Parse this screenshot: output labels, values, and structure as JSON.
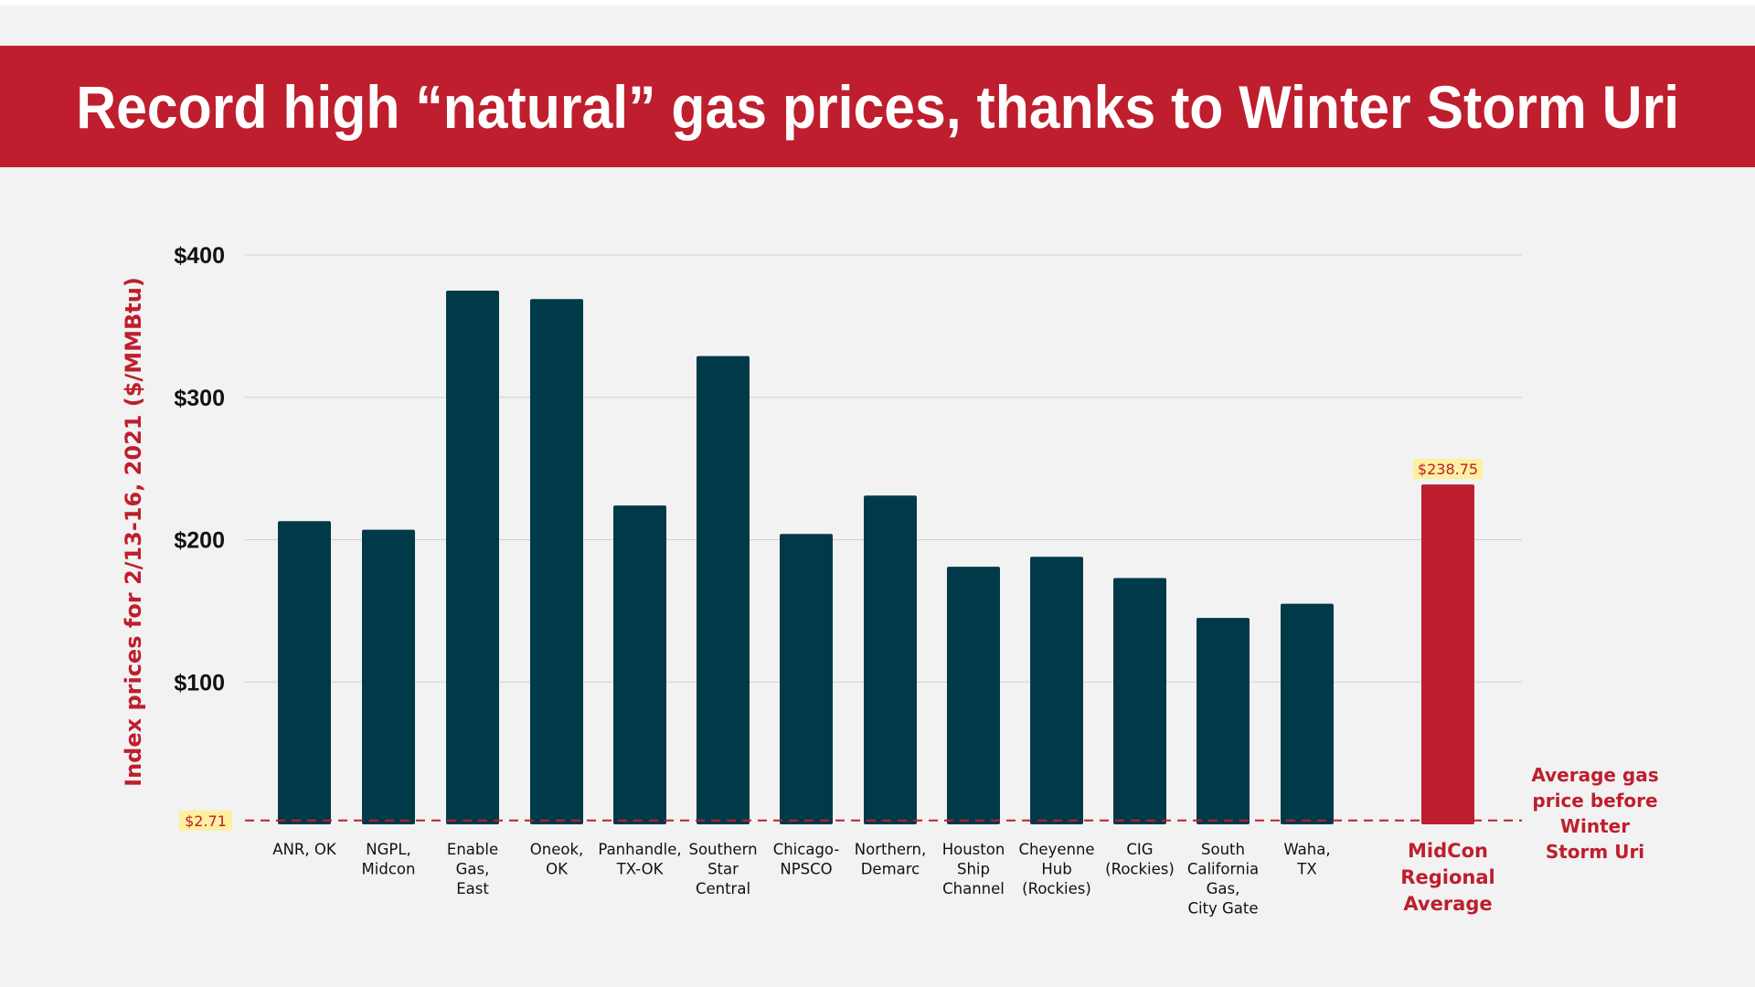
{
  "title": "Record high “natural” gas prices, thanks to Winter Storm Uri",
  "colors": {
    "banner": "#be1e2d",
    "bar": "#003a48",
    "highlight_bar": "#be1e2d",
    "reference_line": "#be1e2d",
    "label_background": "#fdf0a0",
    "panel_background": "#f2f2f2"
  },
  "chart_data": {
    "type": "bar",
    "title": "Record high “natural” gas prices, thanks to Winter Storm Uri",
    "ylabel": "Index prices for 2/13-16, 2021 ($/MMBtu)",
    "xlabel": "",
    "ylim": [
      0,
      400
    ],
    "yticks": [
      100,
      200,
      300,
      400
    ],
    "ytick_labels": [
      "$100",
      "$200",
      "$300",
      "$400"
    ],
    "grid": true,
    "categories": [
      [
        "ANR, OK"
      ],
      [
        "NGPL,",
        "Midcon"
      ],
      [
        "Enable",
        "Gas,",
        "East"
      ],
      [
        "Oneok,",
        "OK"
      ],
      [
        "Panhandle,",
        "TX-OK"
      ],
      [
        "Southern",
        "Star",
        "Central"
      ],
      [
        "Chicago-",
        "NPSCO"
      ],
      [
        "Northern,",
        "Demarc"
      ],
      [
        "Houston",
        "Ship",
        "Channel"
      ],
      [
        "Cheyenne",
        "Hub",
        "(Rockies)"
      ],
      [
        "CIG",
        "(Rockies)"
      ],
      [
        "South",
        "California",
        "Gas,",
        "City Gate"
      ],
      [
        "Waha,",
        "TX"
      ],
      [
        "MidCon",
        "Regional",
        "Average"
      ]
    ],
    "values": [
      213,
      207,
      375,
      369,
      224,
      329,
      204,
      231,
      181,
      188,
      173,
      145,
      155,
      238.75
    ],
    "highlight_index": 13,
    "highlight_value_label": "$238.75",
    "reference_line": {
      "value": 2.71,
      "value_label": "$2.71",
      "annotation": [
        "Average gas",
        "price before",
        "Winter",
        "Storm Uri"
      ]
    }
  }
}
